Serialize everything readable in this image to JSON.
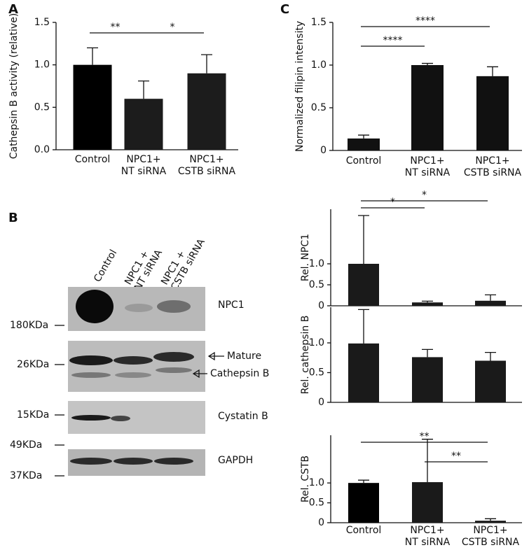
{
  "chart_data": [
    {
      "type": "bar",
      "panel": "A",
      "ylabel": "Cathepsin B activity (relative)",
      "categories": [
        [
          "Control"
        ],
        [
          "NPC1+",
          "NT siRNA"
        ],
        [
          "NPC1+",
          "CSTB siRNA"
        ]
      ],
      "values": [
        1.0,
        0.6,
        0.9
      ],
      "errors": [
        0.2,
        0.21,
        0.22
      ],
      "colors": [
        "#000000",
        "#1c1c1c",
        "#1c1c1c"
      ],
      "ylim": [
        0,
        1.5
      ],
      "yticks": [
        {
          "value": 0,
          "label": "0.0"
        },
        0.5,
        {
          "value": 1,
          "label": "1.0"
        },
        1.5
      ],
      "annotations": [
        {
          "text": "**",
          "from": 0,
          "to": 1
        },
        {
          "text": "*",
          "from": 1,
          "to": 2
        }
      ]
    },
    {
      "type": "bar",
      "panel": "C",
      "ylabel": "Normalized filipin intensity",
      "categories": [
        [
          "Control"
        ],
        [
          "NPC1+",
          "NT siRNA"
        ],
        [
          "NPC1+",
          "CSTB siRNA"
        ]
      ],
      "values": [
        0.14,
        1.0,
        0.87
      ],
      "errors": [
        0.04,
        0.02,
        0.11
      ],
      "colors": [
        "#111111",
        "#111111",
        "#111111"
      ],
      "ylim": [
        0,
        1.5
      ],
      "yticks": [
        0,
        0.5,
        {
          "value": 1,
          "label": "1.0"
        },
        1.5
      ],
      "annotations": [
        {
          "text": "****",
          "from": 0,
          "to": 1
        },
        {
          "text": "****",
          "from": 0,
          "to": 2
        }
      ]
    },
    {
      "type": "bar",
      "ylabel": "Rel. NPC1",
      "values": [
        1.0,
        0.08,
        0.12
      ],
      "errors": [
        1.15,
        0.03,
        0.14
      ],
      "colors": [
        "#1a1a1a",
        "#1a1a1a",
        "#1a1a1a"
      ],
      "ylim": [
        0,
        2.3
      ],
      "yticks": [
        0,
        0.5,
        {
          "value": 1,
          "label": "1.0"
        }
      ],
      "annotations": [
        {
          "text": "*",
          "from": 0,
          "to": 1
        },
        {
          "text": "*",
          "from": 0,
          "to": 2
        }
      ]
    },
    {
      "type": "bar",
      "ylabel": "Rel. cathepsin B",
      "values": [
        0.99,
        0.76,
        0.7
      ],
      "errors": [
        0.57,
        0.13,
        0.14
      ],
      "colors": [
        "#1a1a1a",
        "#1a1a1a",
        "#1a1a1a"
      ],
      "ylim": [
        0,
        1.6
      ],
      "yticks": [
        0,
        0.5,
        {
          "value": 1,
          "label": "1.0"
        }
      ],
      "annotations": []
    },
    {
      "type": "bar",
      "ylabel": "Rel. CSTB",
      "categories": [
        [
          "Control"
        ],
        [
          "NPC1+",
          "NT siRNA"
        ],
        [
          "NPC1+",
          "CSTB siRNA"
        ]
      ],
      "values": [
        1.0,
        1.02,
        0.05
      ],
      "errors": [
        0.07,
        1.08,
        0.05
      ],
      "colors": [
        "#000000",
        "#1a1a1a",
        "#1a1a1a"
      ],
      "ylim": [
        0,
        2.2
      ],
      "yticks": [
        0,
        0.5,
        {
          "value": 1,
          "label": "1.0"
        }
      ],
      "annotations": [
        {
          "text": "**",
          "from": 1,
          "to": 2
        },
        {
          "text": "**",
          "from": 0,
          "to": 2
        }
      ]
    }
  ],
  "blot": {
    "panel": "B",
    "lanes": [
      [
        "Control"
      ],
      [
        "NPC1 +",
        "NT siRNA"
      ],
      [
        "NPC1 +",
        "CSTB siRNA"
      ]
    ],
    "proteins": [
      "NPC1",
      "Cystatin B",
      "GAPDH"
    ],
    "arrows": [
      "Mature",
      "Cathepsin B"
    ],
    "markers": [
      "180KDa",
      "26KDa",
      "15KDa",
      "49KDa",
      "37KDa"
    ]
  }
}
